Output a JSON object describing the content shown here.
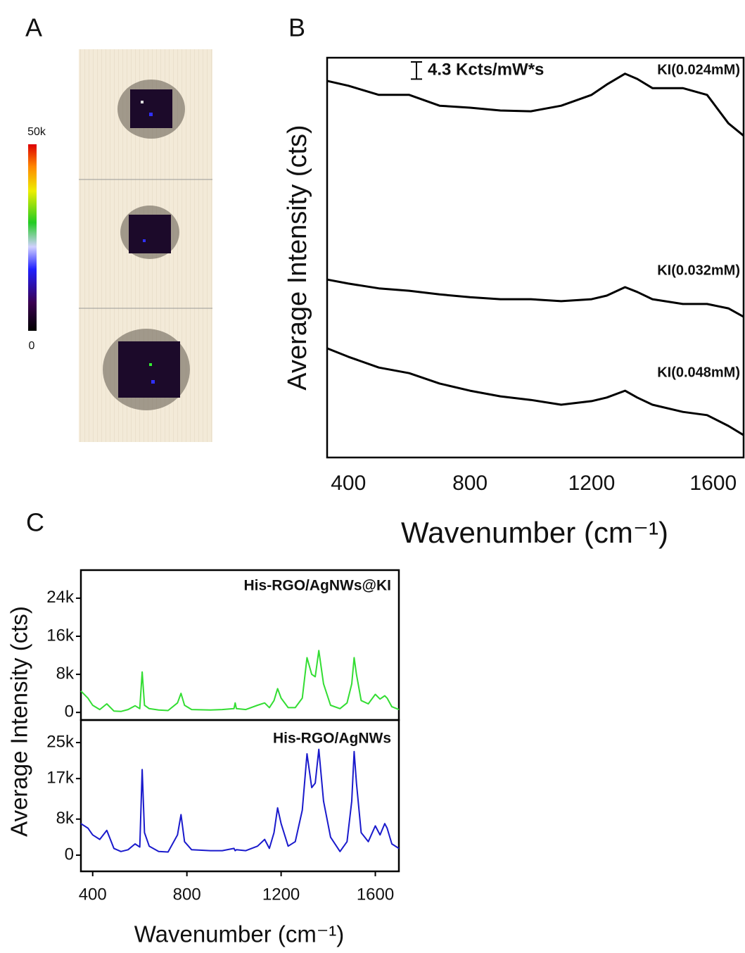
{
  "panel_labels": [
    "A",
    "B",
    "C"
  ],
  "colorbar": {
    "ticks": [
      0,
      {
        "value": 50000,
        "label": "50k"
      }
    ],
    "lim": [
      0,
      50000
    ]
  },
  "chart_data": [
    {
      "type": "line",
      "xlabel": "Wavenumber (cm⁻¹)",
      "ylabel": "Average Intensity (cts)",
      "x": [
        330,
        400,
        500,
        600,
        700,
        800,
        900,
        1000,
        1100,
        1200,
        1250,
        1310,
        1350,
        1400,
        1500,
        1580,
        1650,
        1700
      ],
      "series": [
        {
          "name": "KI(0.024mM)",
          "color": "#000000",
          "values": [
            94.2,
            93.0,
            90.7,
            90.7,
            88.0,
            87.5,
            86.8,
            86.6,
            88.0,
            90.7,
            93.3,
            96.0,
            94.7,
            92.4,
            92.4,
            90.7,
            83.6,
            80.5
          ]
        },
        {
          "name": "KI(0.032mM)",
          "color": "#000000",
          "values": [
            44.5,
            43.5,
            42.3,
            41.7,
            40.8,
            40.1,
            39.6,
            39.6,
            39.1,
            39.6,
            40.5,
            42.6,
            41.4,
            39.6,
            38.4,
            38.4,
            37.3,
            35.2
          ]
        },
        {
          "name": "KI(0.048mM)",
          "color": "#000000",
          "values": [
            27.3,
            25.2,
            22.5,
            21.1,
            18.5,
            16.7,
            15.3,
            14.4,
            13.2,
            14.1,
            15.0,
            16.7,
            15.0,
            13.2,
            11.4,
            10.6,
            7.9,
            5.6
          ]
        }
      ],
      "xlim": [
        330,
        1700
      ],
      "ylim": [
        0,
        100
      ],
      "xticks": [
        400,
        800,
        1200,
        1600
      ],
      "scale_bar": {
        "value": 4.3,
        "label": "4.3 Kcts/mW*s"
      }
    },
    {
      "type": "line",
      "ylabel": "Average Intensity (cts)",
      "x": [
        350,
        380,
        400,
        430,
        460,
        490,
        520,
        550,
        580,
        600,
        610,
        620,
        640,
        680,
        720,
        760,
        775,
        790,
        820,
        900,
        950,
        1000,
        1005,
        1010,
        1050,
        1100,
        1130,
        1150,
        1170,
        1185,
        1200,
        1230,
        1260,
        1290,
        1310,
        1330,
        1345,
        1360,
        1380,
        1410,
        1450,
        1480,
        1500,
        1510,
        1520,
        1540,
        1570,
        1600,
        1620,
        1640,
        1650,
        1670,
        1700
      ],
      "series": [
        {
          "name": "His-RGO/AgNWs@KI",
          "color": "#33dd33",
          "values": [
            4500,
            3000,
            1500,
            600,
            1800,
            300,
            200,
            600,
            1400,
            800,
            8500,
            1500,
            800,
            500,
            400,
            2000,
            4000,
            1500,
            600,
            500,
            600,
            800,
            2000,
            800,
            600,
            1500,
            2000,
            1000,
            2500,
            5000,
            3000,
            1000,
            1000,
            3000,
            11500,
            8000,
            7500,
            13000,
            6000,
            1500,
            800,
            2000,
            6000,
            11500,
            8000,
            2500,
            1800,
            3800,
            2800,
            3500,
            3000,
            1200,
            600
          ]
        }
      ],
      "xlim": [
        350,
        1700
      ],
      "ylim": [
        -1600,
        29900
      ],
      "yticks": [
        0,
        {
          "value": 8000,
          "label": "8k"
        },
        {
          "value": 16000,
          "label": "16k"
        },
        {
          "value": 24000,
          "label": "24k"
        }
      ]
    },
    {
      "type": "line",
      "xlabel": "Wavenumber (cm⁻¹)",
      "x": [
        350,
        380,
        400,
        430,
        460,
        490,
        520,
        550,
        580,
        600,
        610,
        620,
        640,
        680,
        720,
        760,
        775,
        790,
        820,
        900,
        950,
        1000,
        1005,
        1010,
        1050,
        1100,
        1130,
        1150,
        1170,
        1185,
        1200,
        1230,
        1260,
        1290,
        1310,
        1330,
        1345,
        1360,
        1380,
        1410,
        1450,
        1480,
        1500,
        1510,
        1520,
        1540,
        1570,
        1600,
        1620,
        1640,
        1650,
        1670,
        1700
      ],
      "series": [
        {
          "name": "His-RGO/AgNWs",
          "color": "#1a1acc",
          "values": [
            7000,
            6000,
            4500,
            3500,
            5500,
            1500,
            800,
            1200,
            2500,
            1800,
            19000,
            5000,
            2000,
            800,
            700,
            4500,
            9000,
            3000,
            1200,
            1000,
            1000,
            1500,
            1000,
            1200,
            1000,
            2000,
            3500,
            1500,
            5000,
            10500,
            7000,
            2000,
            3000,
            10000,
            22500,
            15000,
            16000,
            23500,
            12000,
            4000,
            800,
            3000,
            12000,
            23000,
            16000,
            5000,
            3000,
            6500,
            4500,
            7000,
            6000,
            2500,
            1500
          ]
        }
      ],
      "xlim": [
        350,
        1700
      ],
      "ylim": [
        -3600,
        30000
      ],
      "xticks": [
        400,
        800,
        1200,
        1600
      ],
      "yticks": [
        0,
        {
          "value": 8000,
          "label": "8k"
        },
        {
          "value": 17000,
          "label": "17k"
        },
        {
          "value": 25000,
          "label": "25k"
        }
      ]
    }
  ]
}
